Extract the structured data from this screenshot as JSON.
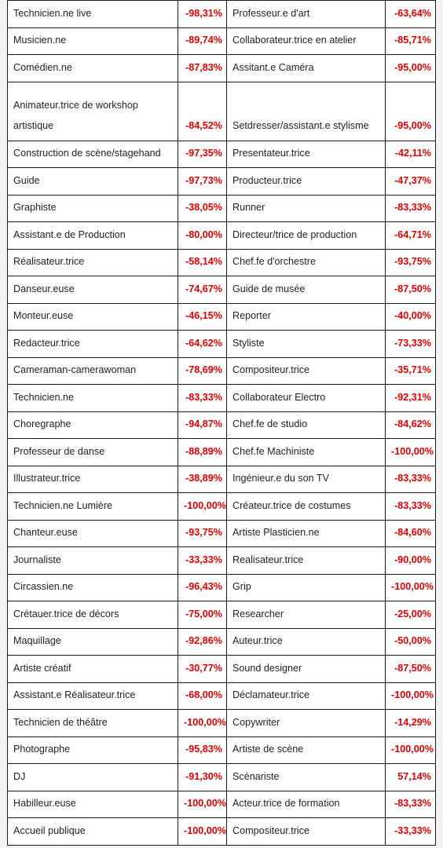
{
  "rows": [
    {
      "left_job": "Technicien.ne live",
      "left_pct": "-98,31%",
      "right_job": "Professeur.e d'art",
      "right_pct": "-63,64%"
    },
    {
      "left_job": "Musicien.ne",
      "left_pct": "-89,74%",
      "right_job": "Collaborateur.trice en atelier",
      "right_pct": "-85,71%"
    },
    {
      "left_job": "Comédien.ne",
      "left_pct": "-87,83%",
      "right_job": "Assitant.e Caméra",
      "right_pct": "-95,00%"
    },
    {
      "left_job": "Animateur.trice de workshop artistique",
      "left_pct": "-84,52%",
      "right_job": "Setdresser/assistant.e stylisme",
      "right_pct": "-95,00%"
    },
    {
      "left_job": "Construction de scène/stagehand",
      "left_pct": "-97,35%",
      "right_job": "Presentateur.trice",
      "right_pct": "-42,11%"
    },
    {
      "left_job": "Guide",
      "left_pct": "-97,73%",
      "right_job": "Producteur.trice",
      "right_pct": "-47,37%"
    },
    {
      "left_job": "Graphiste",
      "left_pct": "-38,05%",
      "right_job": "Runner",
      "right_pct": "-83,33%"
    },
    {
      "left_job": "Assistant.e de Production",
      "left_pct": "-80,00%",
      "right_job": "Directeur/trice de production",
      "right_pct": "-64,71%"
    },
    {
      "left_job": "Réalisateur.trice",
      "left_pct": "-58,14%",
      "right_job": "Chef.fe d'orchestre",
      "right_pct": "-93,75%"
    },
    {
      "left_job": "Danseur.euse",
      "left_pct": "-74,67%",
      "right_job": "Guide de musée",
      "right_pct": "-87,50%"
    },
    {
      "left_job": "Monteur.euse",
      "left_pct": "-46,15%",
      "right_job": "Reporter",
      "right_pct": "-40,00%"
    },
    {
      "left_job": "Redacteur.trice",
      "left_pct": "-64,62%",
      "right_job": "Styliste",
      "right_pct": "-73,33%"
    },
    {
      "left_job": "Cameraman-camerawoman",
      "left_pct": "-78,69%",
      "right_job": "Compositeur.trice",
      "right_pct": "-35,71%"
    },
    {
      "left_job": "Technicien.ne",
      "left_pct": "-83,33%",
      "right_job": "Collaborateur Electro",
      "right_pct": "-92,31%"
    },
    {
      "left_job": "Choregraphe",
      "left_pct": "-94,87%",
      "right_job": "Chef.fe de studio",
      "right_pct": "-84,62%"
    },
    {
      "left_job": "Professeur de danse",
      "left_pct": "-88,89%",
      "right_job": "Chef.fe Machiniste",
      "right_pct": "-100,00%"
    },
    {
      "left_job": "Illustrateur.trice",
      "left_pct": "-38,89%",
      "right_job": "Ingénieur.e du son TV",
      "right_pct": "-83,33%"
    },
    {
      "left_job": "Technicien.ne Lumière",
      "left_pct": "-100,00%",
      "right_job": "Créateur.trice de costumes",
      "right_pct": "-83,33%"
    },
    {
      "left_job": "Chanteur.euse",
      "left_pct": "-93,75%",
      "right_job": "Artiste Plasticien.ne",
      "right_pct": "-84,60%"
    },
    {
      "left_job": "Journaliste",
      "left_pct": "-33,33%",
      "right_job": "Realisateur.trice",
      "right_pct": "-90,00%"
    },
    {
      "left_job": "Circassien.ne",
      "left_pct": "-96,43%",
      "right_job": "Grip",
      "right_pct": "-100,00%"
    },
    {
      "left_job": "Crétauer.trice de décors",
      "left_pct": "-75,00%",
      "right_job": "Researcher",
      "right_pct": "-25,00%"
    },
    {
      "left_job": "Maquillage",
      "left_pct": "-92,86%",
      "right_job": "Auteur.trice",
      "right_pct": "-50,00%"
    },
    {
      "left_job": "Artiste créatif",
      "left_pct": "-30,77%",
      "right_job": "Sound designer",
      "right_pct": "-87,50%"
    },
    {
      "left_job": "Assistant.e Réalisateur.trice",
      "left_pct": "-68,00%",
      "right_job": "Déclamateur.trice",
      "right_pct": "-100,00%"
    },
    {
      "left_job": "Technicien de théâtre",
      "left_pct": "-100,00%",
      "right_job": "Copywriter",
      "right_pct": "-14,29%"
    },
    {
      "left_job": "Photographe",
      "left_pct": "-95,83%",
      "right_job": "Artiste de scène",
      "right_pct": "-100,00%"
    },
    {
      "left_job": "DJ",
      "left_pct": "-91,30%",
      "right_job": "Scénariste",
      "right_pct": "57,14%"
    },
    {
      "left_job": "Habilleur.euse",
      "left_pct": "-100,00%",
      "right_job": "Acteur.trice de formation",
      "right_pct": "-83,33%"
    },
    {
      "left_job": "Accueil publique",
      "left_pct": "-100,00%",
      "right_job": "Compositeur.trice",
      "right_pct": "-33,33%"
    }
  ],
  "colors": {
    "percentage_text": "#e10000",
    "border": "#1a1a1a",
    "background": "#f2f2f2"
  }
}
